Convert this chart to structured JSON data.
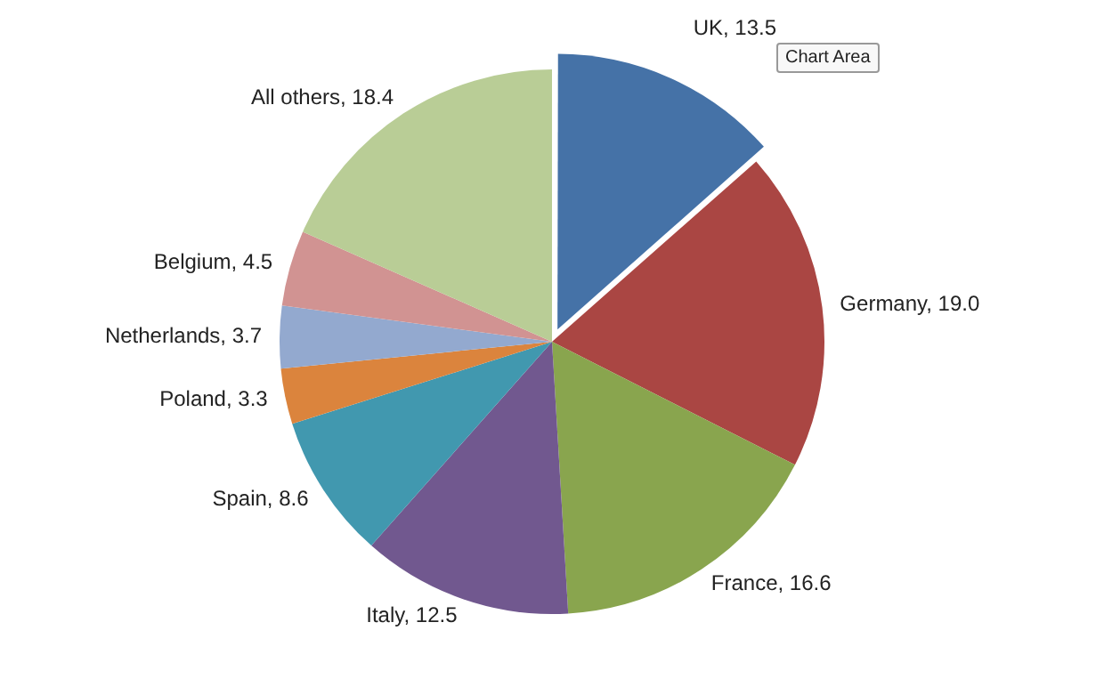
{
  "chart_data": {
    "type": "pie",
    "categories": [
      "UK",
      "Germany",
      "France",
      "Italy",
      "Spain",
      "Poland",
      "Netherlands",
      "Belgium",
      "All others"
    ],
    "values": [
      13.5,
      19.0,
      16.6,
      12.5,
      8.6,
      3.3,
      3.7,
      4.5,
      18.4
    ],
    "value_labels": [
      "13.5",
      "19.0",
      "16.6",
      "12.5",
      "8.6",
      "3.3",
      "3.7",
      "4.5",
      "18.4"
    ],
    "colors": [
      "#4572a7",
      "#aa4643",
      "#89a54e",
      "#71588f",
      "#4198af",
      "#db843d",
      "#93a9cf",
      "#d19392",
      "#b9cd96"
    ],
    "legend": false,
    "annotations": [
      "Chart Area"
    ]
  }
}
